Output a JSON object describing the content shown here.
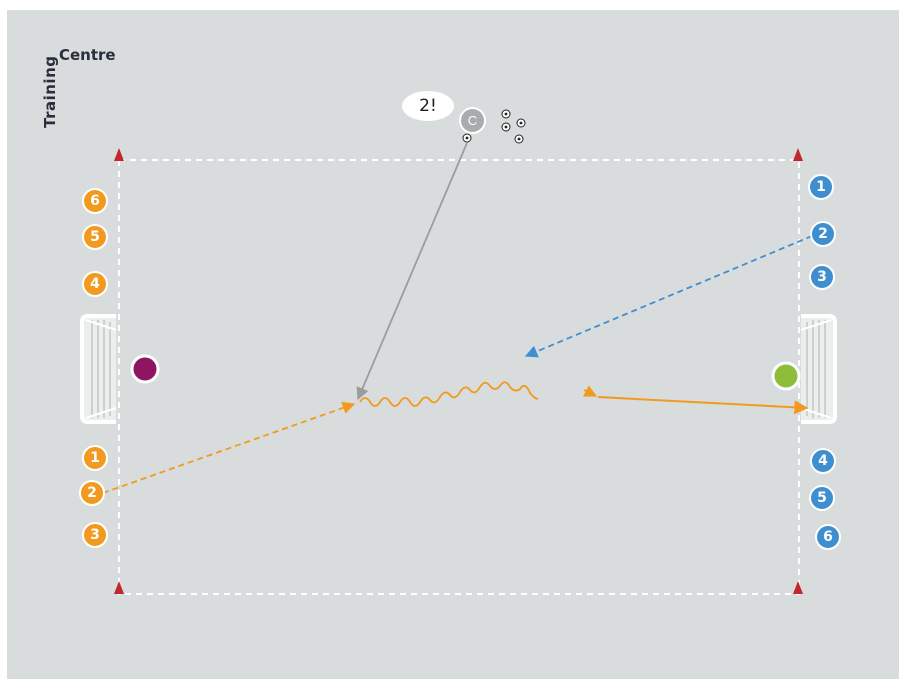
{
  "brand": {
    "line1": "Training",
    "line2": "Centre"
  },
  "coach": {
    "label": "C",
    "callout": "2!"
  },
  "colors": {
    "pitch": "#d8dcdd",
    "orange": "#f29a1f",
    "blue": "#3f8fd0",
    "coach": "#a9acad",
    "magenta": "#8e1560",
    "green": "#8dbd3a",
    "cone": "#c0282d"
  },
  "orange_team": {
    "top": [
      "6",
      "5",
      "4"
    ],
    "bottom": [
      "1",
      "2",
      "3"
    ]
  },
  "blue_team": {
    "top": [
      "1",
      "2",
      "3"
    ],
    "bottom": [
      "4",
      "5",
      "6"
    ]
  },
  "icons": [
    "cone-icon",
    "ball-icon",
    "goal-icon"
  ]
}
